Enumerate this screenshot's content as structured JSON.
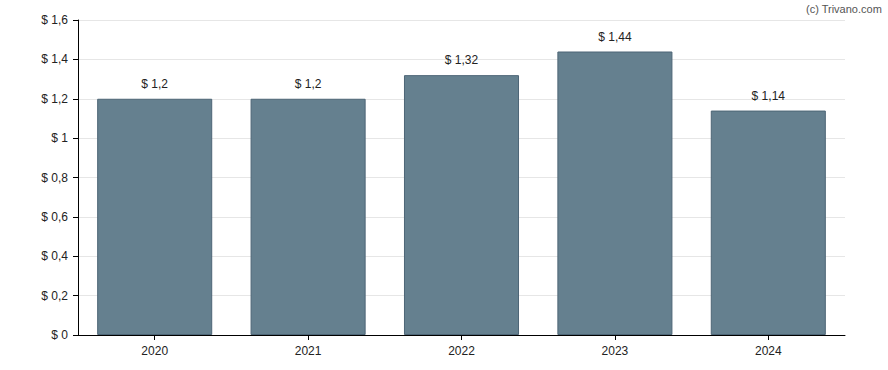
{
  "chart_data": {
    "type": "bar",
    "annotation": "(c) Trivano.com",
    "categories": [
      "2020",
      "2021",
      "2022",
      "2023",
      "2024"
    ],
    "values": [
      1.2,
      1.2,
      1.32,
      1.44,
      1.14
    ],
    "value_labels": [
      "$ 1,2",
      "$ 1,2",
      "$ 1,32",
      "$ 1,44",
      "$ 1,14"
    ],
    "data_labels": true,
    "color": "#65808f",
    "ylim": [
      0,
      1.6
    ],
    "yticks": [
      {
        "value": 0,
        "label": "$ 0"
      },
      {
        "value": 0.2,
        "label": "$ 0,2"
      },
      {
        "value": 0.4,
        "label": "$ 0,4"
      },
      {
        "value": 0.6,
        "label": "$ 0,6"
      },
      {
        "value": 0.8,
        "label": "$ 0,8"
      },
      {
        "value": 1,
        "label": "$ 1"
      },
      {
        "value": 1.2,
        "label": "$ 1,2"
      },
      {
        "value": 1.4,
        "label": "$ 1,4"
      },
      {
        "value": 1.6,
        "label": "$ 1,6"
      }
    ],
    "grid": true
  }
}
